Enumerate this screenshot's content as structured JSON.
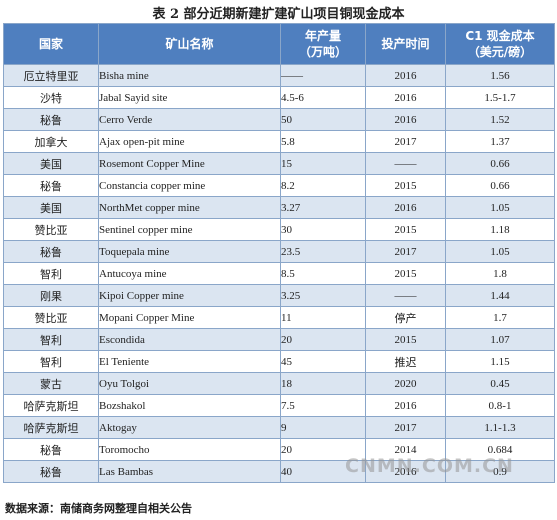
{
  "title": "表 2   部分近期新建扩建矿山项目铜现金成本",
  "headers": {
    "country": "国家",
    "mine": "矿山名称",
    "output_line1": "年产量",
    "output_line2": "（万吨）",
    "year": "投产时间",
    "cost_line1": "C1 现金成本",
    "cost_line2": "（美元/磅）"
  },
  "rows": [
    {
      "country": "厄立特里亚",
      "mine": "Bisha mine",
      "output": "——",
      "year": "2016",
      "cost": "1.56"
    },
    {
      "country": "沙特",
      "mine": "Jabal Sayid site",
      "output": "4.5-6",
      "year": "2016",
      "cost": "1.5-1.7"
    },
    {
      "country": "秘鲁",
      "mine": "Cerro Verde",
      "output": "50",
      "year": "2016",
      "cost": "1.52"
    },
    {
      "country": "加拿大",
      "mine": "Ajax open-pit mine",
      "output": "5.8",
      "year": "2017",
      "cost": "1.37"
    },
    {
      "country": "美国",
      "mine": "Rosemont Copper Mine",
      "output": "15",
      "year": "——",
      "cost": "0.66"
    },
    {
      "country": "秘鲁",
      "mine": "Constancia copper mine",
      "output": "8.2",
      "year": "2015",
      "cost": "0.66"
    },
    {
      "country": "美国",
      "mine": "NorthMet copper mine",
      "output": "3.27",
      "year": "2016",
      "cost": "1.05"
    },
    {
      "country": "赞比亚",
      "mine": "Sentinel copper mine",
      "output": "30",
      "year": "2015",
      "cost": "1.18"
    },
    {
      "country": "秘鲁",
      "mine": "Toquepala mine",
      "output": "23.5",
      "year": "2017",
      "cost": "1.05"
    },
    {
      "country": "智利",
      "mine": "Antucoya mine",
      "output": "8.5",
      "year": "2015",
      "cost": "1.8"
    },
    {
      "country": "刚果",
      "mine": "Kipoi Copper mine",
      "output": "3.25",
      "year": "——",
      "cost": "1.44"
    },
    {
      "country": "赞比亚",
      "mine": "Mopani Copper Mine",
      "output": "11",
      "year": "停产",
      "cost": "1.7"
    },
    {
      "country": "智利",
      "mine": "Escondida",
      "output": "20",
      "year": "2015",
      "cost": "1.07"
    },
    {
      "country": "智利",
      "mine": "El Teniente",
      "output": "45",
      "year": "推迟",
      "cost": "1.15"
    },
    {
      "country": "蒙古",
      "mine": "Oyu Tolgoi",
      "output": "18",
      "year": "2020",
      "cost": "0.45"
    },
    {
      "country": "哈萨克斯坦",
      "mine": "Bozshakol",
      "output": "7.5",
      "year": "2016",
      "cost": "0.8-1"
    },
    {
      "country": "哈萨克斯坦",
      "mine": "Aktogay",
      "output": "9",
      "year": "2017",
      "cost": "1.1-1.3"
    },
    {
      "country": "秘鲁",
      "mine": "Toromocho",
      "output": "20",
      "year": "2014",
      "cost": "0.684"
    },
    {
      "country": "秘鲁",
      "mine": "Las Bambas",
      "output": "40",
      "year": "2016",
      "cost": "0.9"
    }
  ],
  "source": "数据来源：南储商务网整理自相关公告",
  "watermark": "CNMN.COM.CN"
}
